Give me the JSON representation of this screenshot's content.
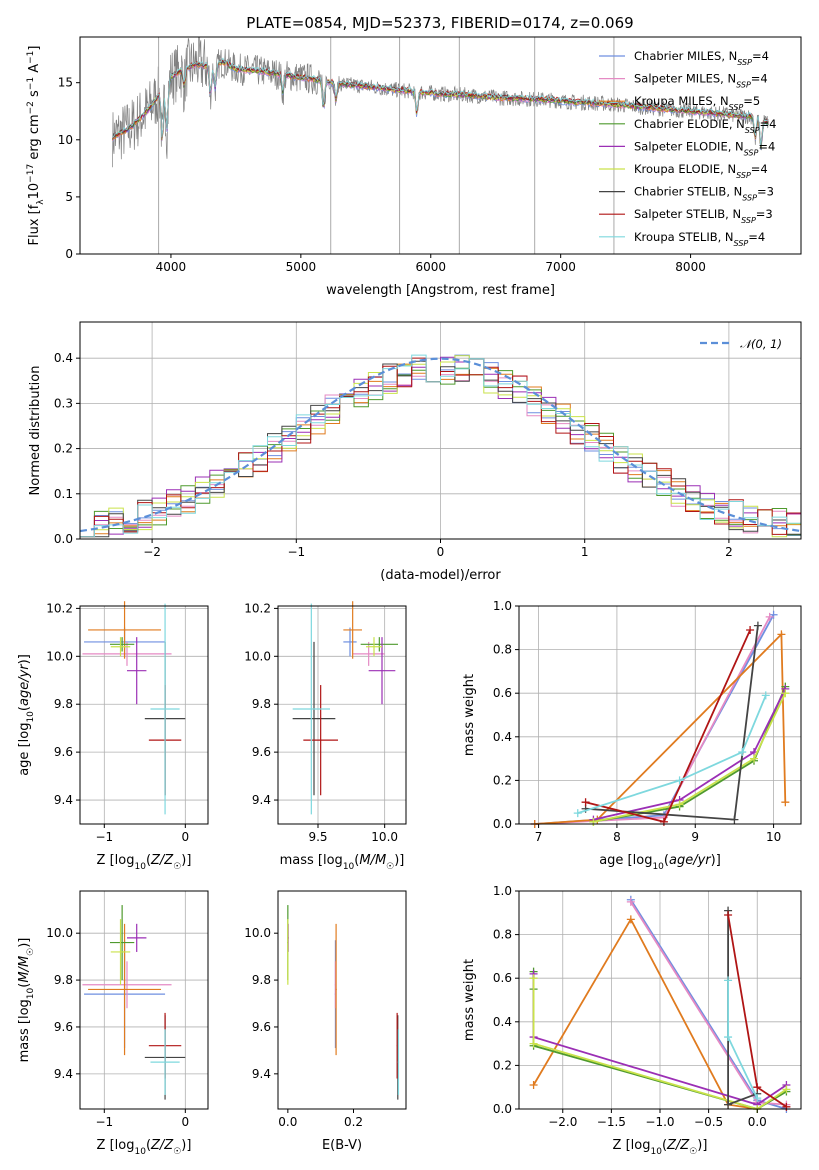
{
  "title": "PLATE=0854, MJD=52373, FIBERID=0174, z=0.069",
  "colors": {
    "chabrier_miles": "#6f8fe0",
    "salpeter_miles": "#e58ac4",
    "kroupa_miles": "#e07b1f",
    "chabrier_elodie": "#4f9a2e",
    "salpeter_elodie": "#9b2fb5",
    "kroupa_elodie": "#c9e24a",
    "chabrier_stelib": "#444444",
    "salpeter_stelib": "#b01515",
    "kroupa_stelib": "#7ed8de",
    "spectrum": "#808080",
    "gaussian": "#5b8fd8",
    "grid": "#b0b0b0"
  },
  "chart_data": [
    {
      "type": "line",
      "name": "spectrum",
      "xlabel": "wavelength [Angstrom, rest frame]",
      "ylabel": "Flux [f_λ 10^-17 erg cm^-2 s^-1 A^-1]",
      "xlim": [
        3300,
        8850
      ],
      "ylim": [
        0,
        19
      ],
      "xticks": [
        "4000",
        "5000",
        "6000",
        "7000",
        "8000"
      ],
      "yticks": [
        "0",
        "5",
        "10",
        "15"
      ],
      "grid": false,
      "legend_position": "top-right",
      "legend": [
        "Chabrier MILES, N_SSP=4",
        "Salpeter MILES, N_SSP=4",
        "Kroupa MILES, N_SSP=5",
        "Chabrier ELODIE, N_SSP=4",
        "Salpeter ELODIE, N_SSP=4",
        "Kroupa ELODIE, N_SSP=4",
        "Chabrier STELIB, N_SSP=3",
        "Salpeter STELIB, N_SSP=3",
        "Kroupa STELIB, N_SSP=4"
      ],
      "continuum": {
        "x": [
          3550,
          3600,
          3650,
          3700,
          3750,
          3800,
          3850,
          3900,
          3950,
          4000,
          4100,
          4200,
          4300,
          4400,
          4500,
          4700,
          4900,
          5100,
          5300,
          5500,
          5700,
          5900,
          6100,
          6300,
          6500,
          6700,
          6900,
          7100,
          7300,
          7500,
          7700,
          7900,
          8100,
          8300,
          8500,
          8600
        ],
        "y": [
          10.2,
          10.5,
          10.8,
          11.2,
          11.8,
          12.3,
          13.0,
          13.8,
          14.5,
          15.5,
          16.2,
          16.6,
          16.4,
          16.8,
          16.2,
          16.0,
          15.6,
          15.3,
          14.9,
          14.7,
          14.4,
          14.2,
          14.0,
          13.9,
          13.7,
          13.6,
          13.5,
          13.3,
          13.2,
          13.0,
          12.8,
          12.6,
          12.4,
          12.2,
          12.0,
          11.5
        ]
      },
      "absorption_features": [
        {
          "x": 3934,
          "depth": 4.5
        },
        {
          "x": 3969,
          "depth": 4.0
        },
        {
          "x": 4102,
          "depth": 1.5
        },
        {
          "x": 4304,
          "depth": 2.5
        },
        {
          "x": 4341,
          "depth": 2.0
        },
        {
          "x": 4861,
          "depth": 1.5
        },
        {
          "x": 5175,
          "depth": 2.5
        },
        {
          "x": 5270,
          "depth": 1.5
        },
        {
          "x": 5893,
          "depth": 2.0
        },
        {
          "x": 8498,
          "depth": 2.0
        },
        {
          "x": 8542,
          "depth": 2.5
        },
        {
          "x": 8662,
          "depth": 2.0
        }
      ],
      "masked_spikes": [
        3905,
        5230,
        5760,
        6220,
        6800,
        7410
      ]
    },
    {
      "type": "bar",
      "name": "residual_histograms",
      "xlabel": "(data-model)/error",
      "ylabel": "Normed distribution",
      "xlim": [
        -2.5,
        2.5
      ],
      "ylim": [
        0,
        0.48
      ],
      "xticks": [
        "−2",
        "−1",
        "0",
        "1",
        "2"
      ],
      "yticks": [
        "0.0",
        "0.1",
        "0.2",
        "0.3",
        "0.4"
      ],
      "grid": true,
      "legend_position": "top-right",
      "legend": [
        "𝒩(0, 1)"
      ],
      "bins": {
        "start": -2.5,
        "width": 0.1,
        "count": 50
      },
      "gaussian": {
        "mean": 0,
        "sigma": 1
      }
    },
    {
      "type": "scatter",
      "name": "age_vs_Z",
      "xlabel": "Z [log10(Z/Z☉)]",
      "ylabel": "age  [log10(age/yr)]",
      "xlim": [
        -1.3,
        0.28
      ],
      "ylim": [
        9.3,
        10.21
      ],
      "xticks": [
        "−1",
        "0"
      ],
      "yticks": [
        "9.4",
        "9.6",
        "9.8",
        "10.0",
        "10.2"
      ],
      "grid": true,
      "series": [
        {
          "key": "chabrier_miles",
          "x": -0.75,
          "xerr": 0.5,
          "y": 10.06,
          "yerr": 0.06
        },
        {
          "key": "salpeter_miles",
          "x": -0.72,
          "xerr": 0.55,
          "y": 10.01,
          "yerr": 0.05
        },
        {
          "key": "kroupa_miles",
          "x": -0.75,
          "xerr": 0.45,
          "y": 10.11,
          "yerr": 0.12
        },
        {
          "key": "chabrier_elodie",
          "x": -0.78,
          "xerr": 0.15,
          "y": 10.05,
          "yerr": 0.03
        },
        {
          "key": "salpeter_elodie",
          "x": -0.6,
          "xerr": 0.12,
          "y": 9.94,
          "yerr": 0.14
        },
        {
          "key": "kroupa_elodie",
          "x": -0.8,
          "xerr": 0.12,
          "y": 10.04,
          "yerr": 0.04
        },
        {
          "key": "chabrier_stelib",
          "x": -0.25,
          "xerr": 0.25,
          "y": 9.74,
          "yerr": 0.32
        },
        {
          "key": "salpeter_stelib",
          "x": -0.25,
          "xerr": 0.2,
          "y": 9.65,
          "yerr": 0.23
        },
        {
          "key": "kroupa_stelib",
          "x": -0.25,
          "xerr": 0.18,
          "y": 9.78,
          "yerr": 0.44
        }
      ]
    },
    {
      "type": "scatter",
      "name": "age_vs_mass",
      "xlabel": "mass [log10(M/M☉)]",
      "ylabel": "",
      "xlim": [
        9.2,
        10.16
      ],
      "ylim": [
        9.3,
        10.21
      ],
      "xticks": [
        "9.5",
        "10.0"
      ],
      "yticks": [
        "9.4",
        "9.6",
        "9.8",
        "10.0",
        "10.2"
      ],
      "grid": true,
      "series": [
        {
          "key": "chabrier_miles",
          "x": 9.74,
          "xerr": 0.05,
          "y": 10.06,
          "yerr": 0.06
        },
        {
          "key": "salpeter_miles",
          "x": 9.88,
          "xerr": 0.12,
          "y": 10.01,
          "yerr": 0.05
        },
        {
          "key": "kroupa_miles",
          "x": 9.76,
          "xerr": 0.07,
          "y": 10.11,
          "yerr": 0.12
        },
        {
          "key": "chabrier_elodie",
          "x": 9.96,
          "xerr": 0.14,
          "y": 10.05,
          "yerr": 0.03
        },
        {
          "key": "salpeter_elodie",
          "x": 9.98,
          "xerr": 0.1,
          "y": 9.94,
          "yerr": 0.14
        },
        {
          "key": "kroupa_elodie",
          "x": 9.92,
          "xerr": 0.06,
          "y": 10.04,
          "yerr": 0.04
        },
        {
          "key": "chabrier_stelib",
          "x": 9.47,
          "xerr": 0.16,
          "y": 9.74,
          "yerr": 0.32
        },
        {
          "key": "salpeter_stelib",
          "x": 9.52,
          "xerr": 0.13,
          "y": 9.65,
          "yerr": 0.23
        },
        {
          "key": "kroupa_stelib",
          "x": 9.45,
          "xerr": 0.14,
          "y": 9.78,
          "yerr": 0.44
        }
      ]
    },
    {
      "type": "line",
      "name": "mass_weight_vs_age",
      "xlabel": "age  [log10(age/yr)]",
      "ylabel": "mass weight",
      "xlim": [
        6.75,
        10.35
      ],
      "ylim": [
        0,
        1
      ],
      "xticks": [
        "7",
        "8",
        "9",
        "10"
      ],
      "yticks": [
        "0.0",
        "0.2",
        "0.4",
        "0.6",
        "0.8",
        "1.0"
      ],
      "grid": true,
      "series": [
        {
          "key": "chabrier_miles",
          "x": [
            6.95,
            8.6,
            10.0
          ],
          "y": [
            0.0,
            0.04,
            0.96
          ]
        },
        {
          "key": "salpeter_miles",
          "x": [
            6.95,
            8.6,
            9.95
          ],
          "y": [
            0.0,
            0.03,
            0.95
          ]
        },
        {
          "key": "kroupa_miles",
          "x": [
            6.95,
            7.75,
            10.1,
            10.15
          ],
          "y": [
            0.0,
            0.02,
            0.87,
            0.1
          ]
        },
        {
          "key": "chabrier_elodie",
          "x": [
            7.7,
            8.8,
            9.75,
            10.15
          ],
          "y": [
            0.01,
            0.08,
            0.29,
            0.63
          ]
        },
        {
          "key": "salpeter_elodie",
          "x": [
            7.7,
            8.8,
            9.75,
            10.15
          ],
          "y": [
            0.02,
            0.11,
            0.33,
            0.62
          ]
        },
        {
          "key": "kroupa_elodie",
          "x": [
            7.7,
            8.8,
            9.75,
            10.15
          ],
          "y": [
            0.01,
            0.09,
            0.3,
            0.6
          ]
        },
        {
          "key": "chabrier_stelib",
          "x": [
            7.6,
            9.5,
            9.8
          ],
          "y": [
            0.07,
            0.02,
            0.91
          ]
        },
        {
          "key": "salpeter_stelib",
          "x": [
            7.6,
            8.6,
            9.7
          ],
          "y": [
            0.1,
            0.01,
            0.89
          ]
        },
        {
          "key": "kroupa_stelib",
          "x": [
            7.5,
            8.8,
            9.6,
            9.9
          ],
          "y": [
            0.05,
            0.2,
            0.33,
            0.59
          ]
        }
      ]
    },
    {
      "type": "scatter",
      "name": "mass_vs_Z",
      "xlabel": "Z [log10(Z/Z☉)]",
      "ylabel": "mass [log10(M/M☉)]",
      "xlim": [
        -1.3,
        0.28
      ],
      "ylim": [
        9.25,
        10.18
      ],
      "xticks": [
        "−1",
        "0"
      ],
      "yticks": [
        "9.4",
        "9.6",
        "9.8",
        "10.0"
      ],
      "grid": true,
      "series": [
        {
          "key": "chabrier_miles",
          "x": -0.75,
          "xerr": 0.5,
          "y": 9.74,
          "yerr": 0.23
        },
        {
          "key": "salpeter_miles",
          "x": -0.72,
          "xerr": 0.55,
          "y": 9.78,
          "yerr": 0.1
        },
        {
          "key": "kroupa_miles",
          "x": -0.75,
          "xerr": 0.45,
          "y": 9.76,
          "yerr": 0.28
        },
        {
          "key": "chabrier_elodie",
          "x": -0.78,
          "xerr": 0.15,
          "y": 9.96,
          "yerr": 0.16
        },
        {
          "key": "salpeter_elodie",
          "x": -0.6,
          "xerr": 0.12,
          "y": 9.98,
          "yerr": 0.06
        },
        {
          "key": "kroupa_elodie",
          "x": -0.8,
          "xerr": 0.12,
          "y": 9.92,
          "yerr": 0.14
        },
        {
          "key": "chabrier_stelib",
          "x": -0.25,
          "xerr": 0.25,
          "y": 9.47,
          "yerr": 0.18
        },
        {
          "key": "salpeter_stelib",
          "x": -0.25,
          "xerr": 0.2,
          "y": 9.52,
          "yerr": 0.14
        },
        {
          "key": "kroupa_stelib",
          "x": -0.25,
          "xerr": 0.18,
          "y": 9.45,
          "yerr": 0.14
        }
      ]
    },
    {
      "type": "scatter",
      "name": "mass_vs_ebv",
      "xlabel": "E(B-V)",
      "ylabel": "",
      "xlim": [
        -0.03,
        0.36
      ],
      "ylim": [
        9.25,
        10.18
      ],
      "xticks": [
        "0.0",
        "0.2"
      ],
      "yticks": [
        "9.4",
        "9.6",
        "9.8",
        "10.0"
      ],
      "grid": false,
      "series": [
        {
          "key": "chabrier_miles",
          "x": 0.145,
          "xerr": 0.002,
          "y": 9.74,
          "yerr": 0.23
        },
        {
          "key": "salpeter_miles",
          "x": 0.145,
          "xerr": 0.002,
          "y": 9.78,
          "yerr": 0.1
        },
        {
          "key": "kroupa_miles",
          "x": 0.147,
          "xerr": 0.002,
          "y": 9.76,
          "yerr": 0.28
        },
        {
          "key": "chabrier_elodie",
          "x": 0.0,
          "xerr": 0.002,
          "y": 9.96,
          "yerr": 0.16
        },
        {
          "key": "salpeter_elodie",
          "x": 0.001,
          "xerr": 0.002,
          "y": 9.98,
          "yerr": 0.06
        },
        {
          "key": "kroupa_elodie",
          "x": 0.0,
          "xerr": 0.002,
          "y": 9.92,
          "yerr": 0.14
        },
        {
          "key": "chabrier_stelib",
          "x": 0.335,
          "xerr": 0.002,
          "y": 9.47,
          "yerr": 0.18
        },
        {
          "key": "salpeter_stelib",
          "x": 0.333,
          "xerr": 0.002,
          "y": 9.52,
          "yerr": 0.14
        },
        {
          "key": "kroupa_stelib",
          "x": 0.337,
          "xerr": 0.002,
          "y": 9.45,
          "yerr": 0.14
        }
      ]
    },
    {
      "type": "line",
      "name": "mass_weight_vs_Z",
      "xlabel": "Z [log10(Z/Z☉)]",
      "ylabel": "mass weight",
      "xlim": [
        -2.45,
        0.45
      ],
      "ylim": [
        0,
        1
      ],
      "xticks": [
        "−2.0",
        "−1.5",
        "−1.0",
        "−0.5",
        "0.0"
      ],
      "yticks": [
        "0.0",
        "0.2",
        "0.4",
        "0.6",
        "0.8",
        "1.0"
      ],
      "grid": true,
      "series": [
        {
          "key": "chabrier_miles",
          "x": [
            -1.3,
            0.0,
            0.3
          ],
          "y": [
            0.96,
            0.04,
            0.0
          ]
        },
        {
          "key": "salpeter_miles",
          "x": [
            -1.3,
            0.0,
            0.3
          ],
          "y": [
            0.95,
            0.03,
            0.02
          ]
        },
        {
          "key": "kroupa_miles",
          "x": [
            -2.3,
            -1.3,
            -0.3,
            0.0
          ],
          "y": [
            0.11,
            0.87,
            0.02,
            0.0
          ]
        },
        {
          "key": "chabrier_elodie",
          "x": [
            -2.3,
            -2.3,
            -2.3,
            0.0,
            0.3
          ],
          "y": [
            0.63,
            0.55,
            0.29,
            0.0,
            0.08
          ]
        },
        {
          "key": "salpeter_elodie",
          "x": [
            -2.3,
            -2.3,
            0.0,
            0.3
          ],
          "y": [
            0.62,
            0.33,
            0.02,
            0.11
          ]
        },
        {
          "key": "kroupa_elodie",
          "x": [
            -2.3,
            -2.3,
            0.0,
            0.3
          ],
          "y": [
            0.6,
            0.3,
            0.0,
            0.09
          ]
        },
        {
          "key": "chabrier_stelib",
          "x": [
            -0.3,
            -0.3,
            0.0
          ],
          "y": [
            0.91,
            0.02,
            0.07
          ]
        },
        {
          "key": "salpeter_stelib",
          "x": [
            -0.3,
            0.0,
            0.3
          ],
          "y": [
            0.89,
            0.1,
            0.01
          ]
        },
        {
          "key": "kroupa_stelib",
          "x": [
            -0.3,
            -0.3,
            0.0
          ],
          "y": [
            0.59,
            0.33,
            0.05
          ]
        }
      ]
    }
  ]
}
